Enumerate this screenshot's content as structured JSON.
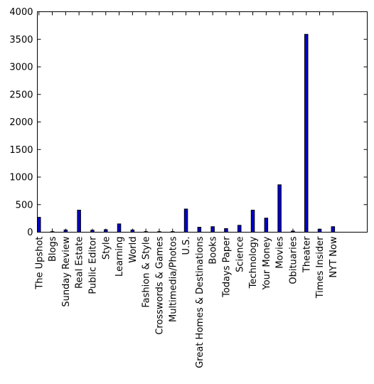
{
  "chart_data": {
    "type": "bar",
    "title": "",
    "xlabel": "",
    "ylabel": "",
    "ylim": [
      0,
      4000
    ],
    "yticks": [
      0,
      500,
      1000,
      1500,
      2000,
      2500,
      3000,
      3500,
      4000
    ],
    "grid": false,
    "legend": "none",
    "bar_color": "#0000cc",
    "categories": [
      "The Upshot",
      "Blogs",
      "Sunday Review",
      "Real Estate",
      "Public Editor",
      "Style",
      "Learning",
      "World",
      "Fashion & Style",
      "Crosswords & Games",
      "Multimedia/Photos",
      "U.S.",
      "Great Homes & Destinations",
      "Books",
      "Todays Paper",
      "Science",
      "Technology",
      "Your Money",
      "Movies",
      "Obituaries",
      "Theater",
      "Times Insider",
      "NYT Now"
    ],
    "values": [
      270,
      10,
      40,
      400,
      35,
      45,
      150,
      40,
      10,
      10,
      10,
      420,
      90,
      100,
      65,
      125,
      400,
      255,
      860,
      20,
      3590,
      55,
      100
    ]
  }
}
